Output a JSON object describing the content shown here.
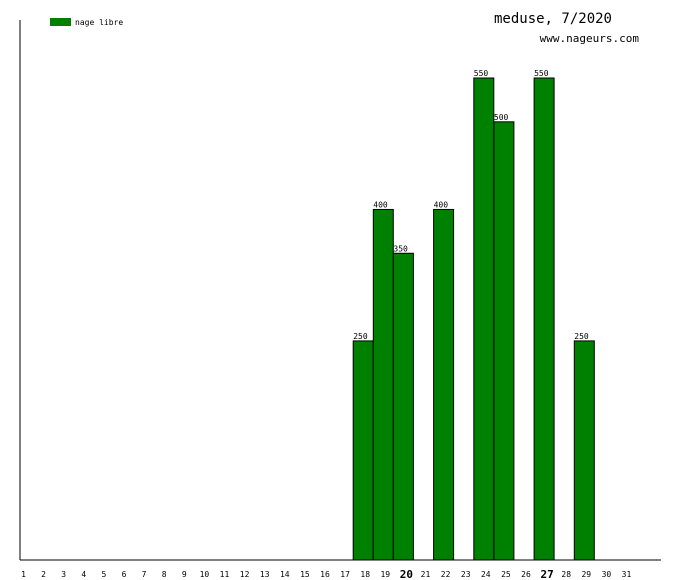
{
  "chart_data": {
    "type": "bar",
    "title": "meduse, 7/2020",
    "subtitle": "www.nageurs.com",
    "xlabel": "",
    "ylabel": "",
    "ylim": [
      0,
      550
    ],
    "grid": false,
    "legend_position": "top-left",
    "categories": [
      "1",
      "2",
      "3",
      "4",
      "5",
      "6",
      "7",
      "8",
      "9",
      "10",
      "11",
      "12",
      "13",
      "14",
      "15",
      "16",
      "17",
      "18",
      "19",
      "20",
      "21",
      "22",
      "23",
      "24",
      "25",
      "26",
      "27",
      "28",
      "29",
      "30",
      "31"
    ],
    "highlighted_categories": [
      "20",
      "27"
    ],
    "series": [
      {
        "name": "nage libre",
        "color": "#008000",
        "values": [
          null,
          null,
          null,
          null,
          null,
          null,
          null,
          null,
          null,
          null,
          null,
          null,
          null,
          null,
          null,
          null,
          null,
          250,
          400,
          350,
          null,
          400,
          null,
          550,
          500,
          null,
          550,
          null,
          250,
          null,
          null
        ]
      }
    ]
  }
}
